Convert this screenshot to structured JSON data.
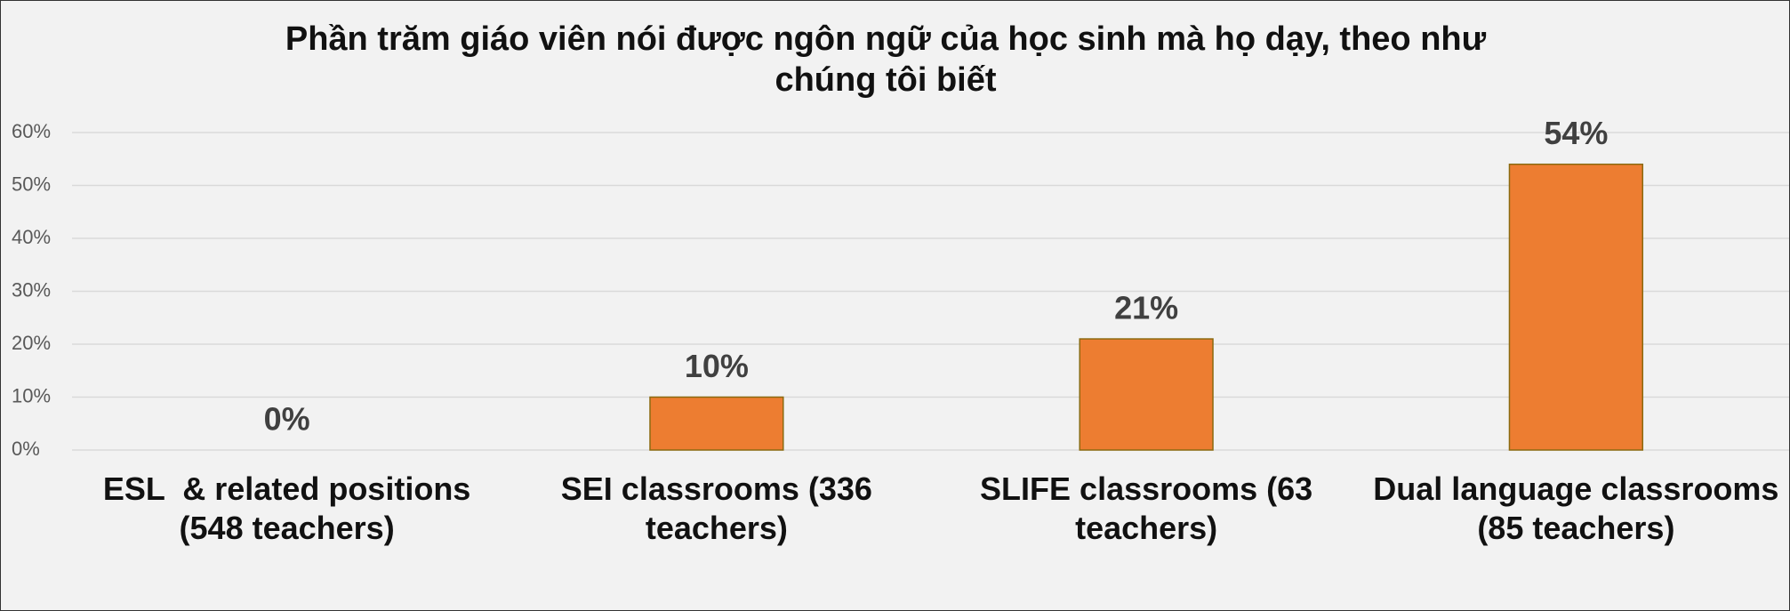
{
  "chart_data": {
    "type": "bar",
    "title": "Phần trăm giáo viên nói được ngôn ngữ của học sinh mà họ dạy, theo như chúng tôi biết",
    "categories": [
      "ESL  & related positions (548 teachers)",
      "SEI classrooms (336 teachers)",
      "SLIFE classrooms (63 teachers)",
      "Dual language classrooms (85 teachers)"
    ],
    "values": [
      0,
      10,
      21,
      54
    ],
    "value_labels": [
      "0%",
      "10%",
      "21%",
      "54%"
    ],
    "color": "#ed7d31",
    "ylim": [
      0,
      60
    ],
    "yticks": [
      {
        "value": 0,
        "label": "0%"
      },
      {
        "value": 10,
        "label": "10%"
      },
      {
        "value": 20,
        "label": "20%"
      },
      {
        "value": 30,
        "label": "30%"
      },
      {
        "value": 40,
        "label": "40%"
      },
      {
        "value": 50,
        "label": "50%"
      },
      {
        "value": 60,
        "label": "60%"
      }
    ],
    "grid": true
  }
}
